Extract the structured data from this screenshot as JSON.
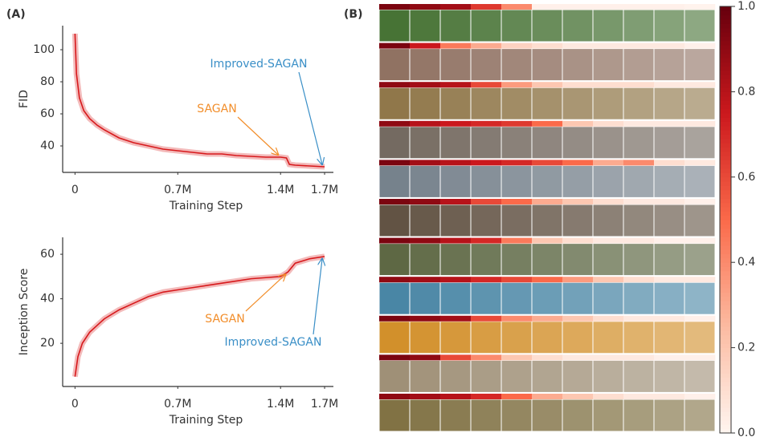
{
  "chart_data": [
    {
      "type": "line",
      "panel": "(A)",
      "xlabel": "Training Step",
      "ylabel": "FID",
      "color": "#d7191c",
      "x": [
        0,
        10000,
        30000,
        60000,
        100000,
        150000,
        200000,
        300000,
        400000,
        500000,
        600000,
        700000,
        800000,
        900000,
        1000000,
        1100000,
        1200000,
        1300000,
        1400000,
        1440000,
        1460000,
        1500000,
        1600000,
        1700000
      ],
      "values": [
        110,
        85,
        70,
        62,
        57,
        53,
        50,
        45,
        42,
        40,
        38,
        37,
        36,
        35,
        35,
        34,
        33.5,
        33,
        33,
        32.5,
        28.5,
        28,
        27.5,
        27
      ],
      "xlim": [
        -84000,
        1760000
      ],
      "ylim": [
        23.5,
        115
      ],
      "xticks": [
        0,
        {
          "value": 700000,
          "label": "0.7M"
        },
        {
          "value": 1400000,
          "label": "1.4M"
        },
        {
          "value": 1700000,
          "label": "1.7M"
        }
      ],
      "yticks": [
        40,
        60,
        80,
        100
      ],
      "annotations": [
        {
          "text": "SAGAN",
          "color": "#f28e2b"
        },
        {
          "text": "Improved-SAGAN",
          "color": "#3a8fc7"
        }
      ]
    },
    {
      "type": "line",
      "xlabel": "Training Step",
      "ylabel": "Inception Score",
      "color": "#d7191c",
      "x": [
        0,
        20000,
        50000,
        100000,
        200000,
        300000,
        400000,
        500000,
        600000,
        700000,
        800000,
        900000,
        1000000,
        1100000,
        1200000,
        1300000,
        1400000,
        1450000,
        1500000,
        1600000,
        1700000
      ],
      "values": [
        5,
        14,
        20,
        25,
        31,
        35,
        38,
        41,
        43,
        44,
        45,
        46,
        47,
        48,
        49,
        49.5,
        50,
        52,
        56,
        58,
        59
      ],
      "xlim": [
        -84000,
        1760000
      ],
      "ylim": [
        0.6,
        67.6
      ],
      "xticks": [
        0,
        {
          "value": 700000,
          "label": "0.7M"
        },
        {
          "value": 1400000,
          "label": "1.4M"
        },
        {
          "value": 1700000,
          "label": "1.7M"
        }
      ],
      "yticks": [
        20,
        40,
        60
      ],
      "annotations": [
        {
          "text": "SAGAN",
          "color": "#f28e2b"
        },
        {
          "text": "Improved-SAGAN",
          "color": "#3a8fc7"
        }
      ]
    },
    {
      "type": "heatmap",
      "panel": "(B)",
      "values": [
        [
          0.95,
          0.9,
          0.85,
          0.65,
          0.4,
          0.02,
          0.02,
          0.02,
          0.02,
          0.02,
          0.01
        ],
        [
          0.95,
          0.75,
          0.45,
          0.3,
          0.15,
          0.1,
          0.05,
          0.05,
          0.05,
          0.05,
          0.02
        ],
        [
          0.9,
          0.85,
          0.8,
          0.6,
          0.35,
          0.2,
          0.1,
          0.1,
          0.1,
          0.05,
          0.05
        ],
        [
          0.9,
          0.8,
          0.75,
          0.7,
          0.65,
          0.5,
          0.2,
          0.1,
          0.05,
          0.05,
          0.05
        ],
        [
          0.95,
          0.85,
          0.8,
          0.75,
          0.7,
          0.6,
          0.5,
          0.3,
          0.4,
          0.1,
          0.05
        ],
        [
          0.95,
          0.9,
          0.8,
          0.6,
          0.5,
          0.3,
          0.2,
          0.1,
          0.05,
          0.05,
          0.02
        ],
        [
          0.95,
          0.9,
          0.8,
          0.7,
          0.45,
          0.2,
          0.1,
          0.05,
          0.05,
          0.02,
          0.02
        ],
        [
          0.9,
          0.85,
          0.8,
          0.7,
          0.6,
          0.5,
          0.35,
          0.2,
          0.1,
          0.05,
          0.05
        ],
        [
          0.95,
          0.9,
          0.85,
          0.6,
          0.4,
          0.3,
          0.2,
          0.1,
          0.05,
          0.05,
          0.02
        ],
        [
          0.95,
          0.9,
          0.6,
          0.4,
          0.2,
          0.1,
          0.05,
          0.05,
          0.05,
          0.02,
          0.02
        ],
        [
          0.9,
          0.85,
          0.8,
          0.7,
          0.5,
          0.3,
          0.2,
          0.1,
          0.05,
          0.05,
          0.02
        ]
      ],
      "zlim": [
        0,
        1
      ],
      "zticks": [
        {
          "value": 0,
          "label": "0.0"
        },
        0.2,
        0.4,
        0.6,
        0.8,
        {
          "value": 1,
          "label": "1.0"
        }
      ]
    }
  ]
}
